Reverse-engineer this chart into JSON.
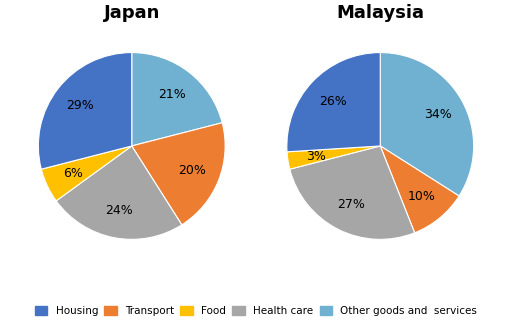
{
  "japan": {
    "title": "Japan",
    "values": [
      21,
      20,
      24,
      6,
      29
    ],
    "order": [
      "Other goods and services",
      "Transport",
      "Health care",
      "Food",
      "Housing"
    ]
  },
  "malaysia": {
    "title": "Malaysia",
    "values": [
      34,
      10,
      27,
      3,
      26
    ],
    "order": [
      "Other goods and services",
      "Transport",
      "Health care",
      "Food",
      "Housing"
    ]
  },
  "colors_japan": [
    "#70b0d0",
    "#ed7d31",
    "#a6a6a6",
    "#ffc000",
    "#4472c4"
  ],
  "colors_malaysia": [
    "#70b0d0",
    "#ed7d31",
    "#a6a6a6",
    "#ffc000",
    "#4472c4"
  ],
  "legend_colors": [
    "#4472c4",
    "#ed7d31",
    "#ffc000",
    "#a6a6a6",
    "#70b0d0"
  ],
  "legend_labels": [
    "Housing",
    "Transport",
    "Food",
    "Health care",
    "Other goods and  services"
  ],
  "startangle": 90,
  "pctdistance": 0.7,
  "figsize": [
    5.12,
    3.28
  ],
  "dpi": 100
}
